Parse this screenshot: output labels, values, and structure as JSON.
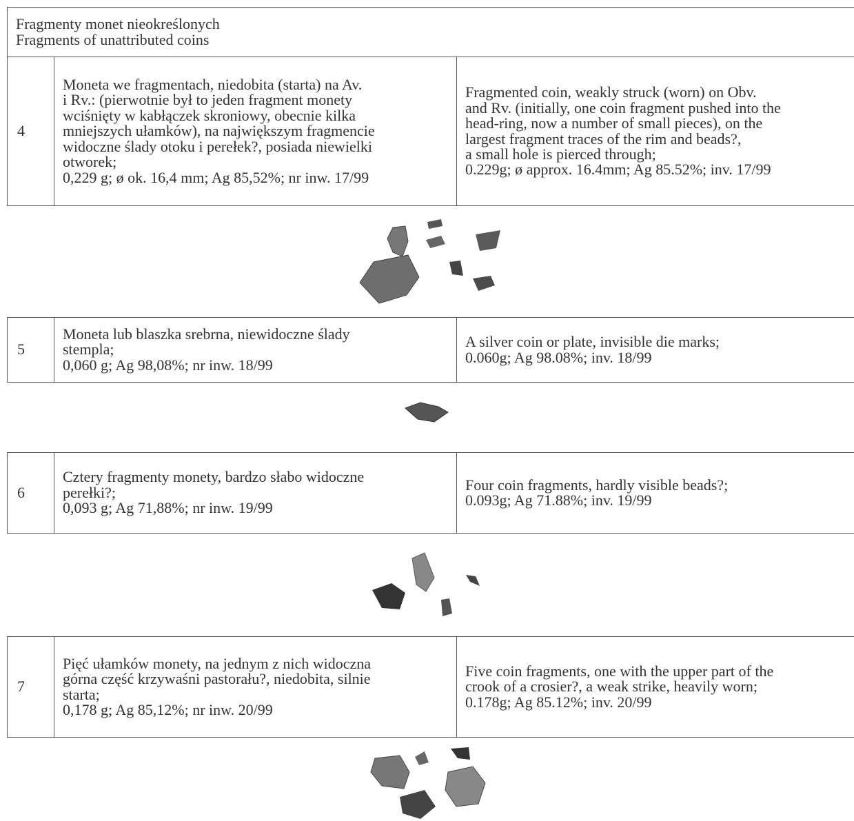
{
  "header": {
    "lines": [
      "Fragmenty monet nieokreślonych",
      "Fragments of unattributed coins"
    ]
  },
  "rows": [
    {
      "number": "4",
      "polish": [
        "Moneta we fragmentach, niedobita (starta) na Av.",
        "i Rv.: (pierwotnie był to jeden fragment monety",
        "wciśnięty w kabłączek skroniowy, obecnie kilka",
        "mniejszych ułamków), na największym fragmencie",
        "widoczne ślady otoku i perełek?, posiada niewielki",
        "otworek;",
        "0,229 g; ø ok. 16,4 mm; Ag 85,52%; nr inw. 17/99"
      ],
      "english": [
        "Fragmented coin, weakly struck (worn) on Obv.",
        "and Rv. (initially, one coin fragment pushed into the",
        "head-ring, now a number of small pieces), on the",
        "largest fragment traces of the rim and beads?,",
        "a small hole is pierced through;",
        "0.229g; ø approx. 16.4mm; Ag 85.52%; inv. 17/99"
      ]
    },
    {
      "number": "5",
      "polish": [
        "Moneta lub blaszka srebrna, niewidoczne ślady",
        "stempla;",
        "0,060 g; Ag 98,08%; nr inw. 18/99"
      ],
      "english": [
        "A silver coin or plate, invisible die marks;",
        "0.060g; Ag 98.08%; inv. 18/99"
      ]
    },
    {
      "number": "6",
      "polish": [
        "Cztery fragmenty monety, bardzo słabo widoczne",
        "perełki?;",
        "0,093 g; Ag 71,88%; nr inw. 19/99"
      ],
      "english": [
        "Four coin fragments, hardly visible beads?;",
        "0.093g; Ag 71.88%; inv. 19/99"
      ]
    },
    {
      "number": "7",
      "polish": [
        "Pięć ułamków monety, na jednym z nich widoczna",
        "górna część krzywaśni pastorału?, niedobita, silnie",
        "starta;",
        "0,178 g; Ag 85,12%; nr inw. 20/99"
      ],
      "english": [
        "Five coin fragments, one with the upper part of the",
        "crook of a crosier?, a weak strike, heavily worn;",
        "0.178g; Ag 85.12%; inv. 20/99"
      ]
    }
  ]
}
